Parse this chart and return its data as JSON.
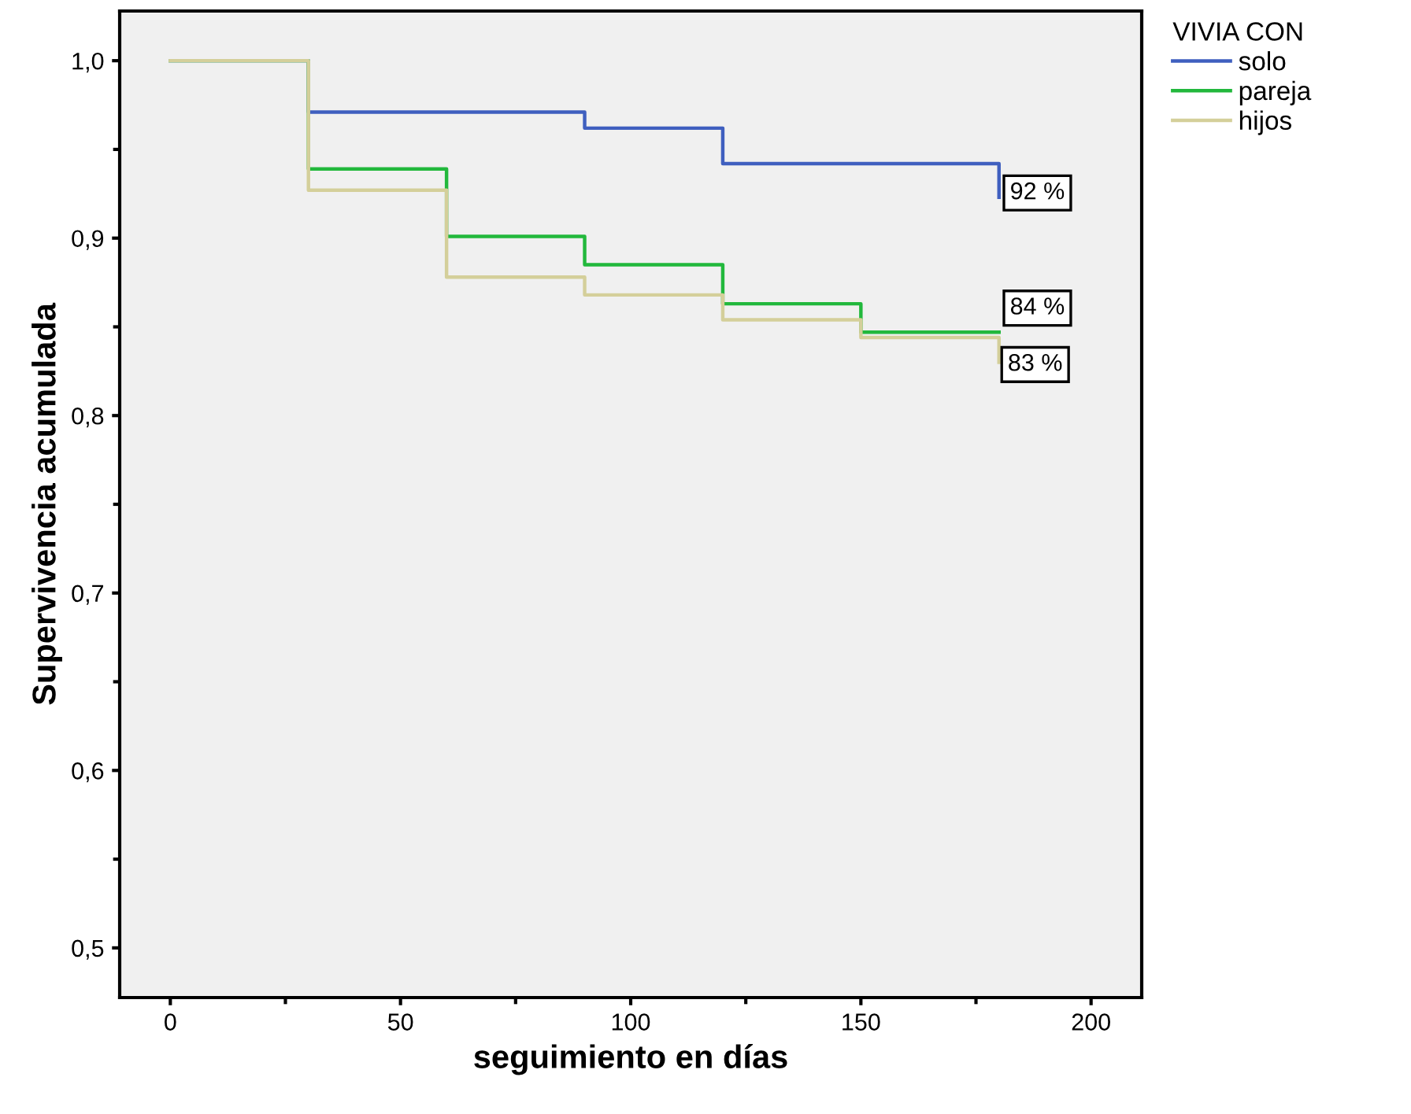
{
  "chart_data": {
    "type": "step",
    "xlabel": "seguimiento en días",
    "ylabel": "Supervivencia acumulada",
    "legend_title": "VIVIA CON",
    "legend": "top right",
    "grid": false,
    "xlim": [
      -11,
      211
    ],
    "xticks": [
      0,
      {
        "value": 25,
        "label": null
      },
      50,
      {
        "value": 75,
        "label": null
      },
      100,
      {
        "value": 125,
        "label": null
      },
      150,
      {
        "value": 175,
        "label": null
      },
      200
    ],
    "ylim": [
      0.472,
      1.028
    ],
    "yticks": [
      {
        "value": 0.5,
        "label": "0,5"
      },
      {
        "value": 0.55,
        "label": null
      },
      {
        "value": 0.6,
        "label": "0,6"
      },
      {
        "value": 0.65,
        "label": null
      },
      {
        "value": 0.7,
        "label": "0,7"
      },
      {
        "value": 0.75,
        "label": null
      },
      {
        "value": 0.8,
        "label": "0,8"
      },
      {
        "value": 0.85,
        "label": null
      },
      {
        "value": 0.9,
        "label": "0,9"
      },
      {
        "value": 0.95,
        "label": null
      },
      {
        "value": 1.0,
        "label": "1,0"
      }
    ],
    "series": [
      {
        "name": "solo",
        "color": "#3f5fbf",
        "x": [
          0,
          30,
          90,
          120,
          180
        ],
        "values": [
          1.0,
          0.971,
          0.962,
          0.942,
          0.923
        ]
      },
      {
        "name": "pareja",
        "color": "#22b83c",
        "x": [
          0,
          30,
          60,
          90,
          120,
          150,
          180
        ],
        "values": [
          1.0,
          0.939,
          0.901,
          0.885,
          0.863,
          0.847,
          0.847
        ]
      },
      {
        "name": "hijos",
        "color": "#d4cf9a",
        "x": [
          0,
          30,
          60,
          90,
          120,
          150,
          180
        ],
        "values": [
          1.0,
          0.927,
          0.878,
          0.868,
          0.854,
          0.844,
          0.83
        ]
      }
    ],
    "annotations": [
      "92 %",
      "84 %",
      "83 %"
    ]
  }
}
